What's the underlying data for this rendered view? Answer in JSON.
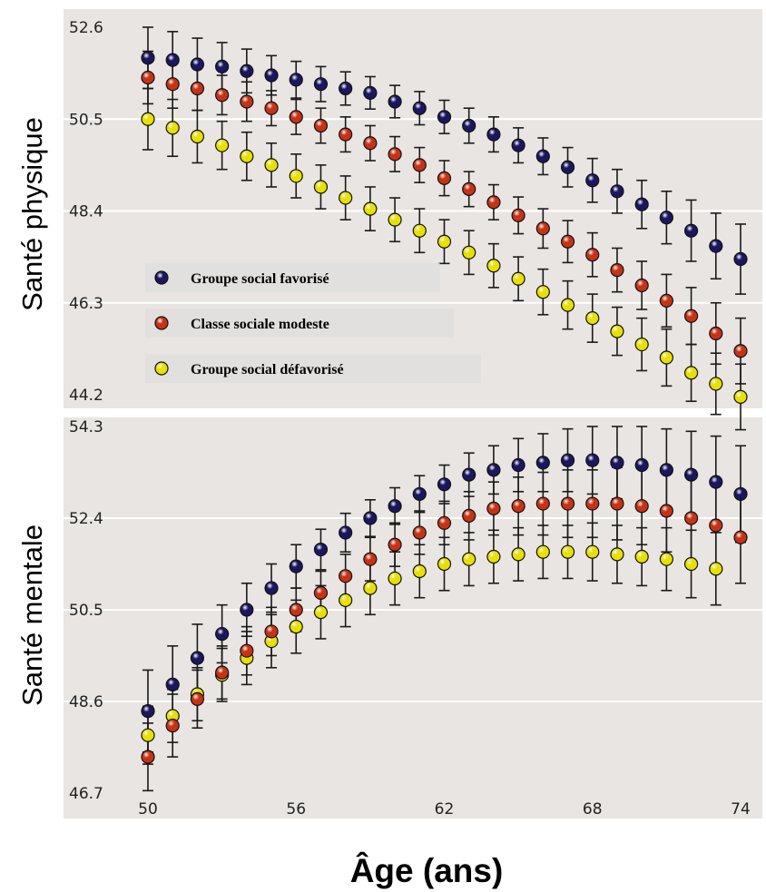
{
  "x_axis_label": "Âge (ans)",
  "legend": {
    "items": [
      {
        "label": "Groupe social favorisé",
        "color": "#1c1660"
      },
      {
        "label": "Classe sociale modeste",
        "color": "#c83214"
      },
      {
        "label": "Groupe social défavorisé",
        "color": "#e8e000"
      }
    ]
  },
  "chart_data": [
    {
      "type": "scatter",
      "ylabel": "Santé physique",
      "xlabel": "",
      "xlim": [
        49.5,
        74.5
      ],
      "ylim": [
        44.2,
        52.6
      ],
      "yticks": [
        44.2,
        46.3,
        48.4,
        50.5,
        52.6
      ],
      "xticks": [
        50,
        56,
        62,
        68,
        74
      ],
      "grid": true,
      "error_bars": true,
      "x": [
        50,
        51,
        52,
        53,
        54,
        55,
        56,
        57,
        58,
        59,
        60,
        61,
        62,
        63,
        64,
        65,
        66,
        67,
        68,
        69,
        70,
        71,
        72,
        73,
        74
      ],
      "series": [
        {
          "name": "Groupe social favorisé",
          "color": "#1c1660",
          "values": [
            51.9,
            51.85,
            51.75,
            51.7,
            51.6,
            51.5,
            51.4,
            51.3,
            51.2,
            51.1,
            50.9,
            50.75,
            50.55,
            50.35,
            50.15,
            49.9,
            49.65,
            49.4,
            49.1,
            48.85,
            48.55,
            48.25,
            47.95,
            47.6,
            47.3
          ],
          "error": [
            0.7,
            0.65,
            0.6,
            0.55,
            0.5,
            0.45,
            0.42,
            0.4,
            0.38,
            0.37,
            0.37,
            0.38,
            0.38,
            0.4,
            0.4,
            0.4,
            0.42,
            0.45,
            0.5,
            0.5,
            0.55,
            0.6,
            0.7,
            0.75,
            0.8
          ]
        },
        {
          "name": "Classe sociale modeste",
          "color": "#c83214",
          "values": [
            51.45,
            51.3,
            51.2,
            51.05,
            50.9,
            50.75,
            50.55,
            50.35,
            50.15,
            49.95,
            49.7,
            49.45,
            49.15,
            48.9,
            48.6,
            48.3,
            48.0,
            47.7,
            47.4,
            47.05,
            46.7,
            46.35,
            46.0,
            45.6,
            45.2
          ],
          "error": [
            0.6,
            0.55,
            0.5,
            0.45,
            0.45,
            0.4,
            0.4,
            0.4,
            0.4,
            0.4,
            0.4,
            0.4,
            0.4,
            0.4,
            0.4,
            0.42,
            0.45,
            0.48,
            0.5,
            0.5,
            0.55,
            0.6,
            0.65,
            0.7,
            0.75
          ]
        },
        {
          "name": "Groupe social défavorisé",
          "color": "#e8e000",
          "values": [
            50.5,
            50.3,
            50.1,
            49.9,
            49.65,
            49.45,
            49.2,
            48.95,
            48.7,
            48.45,
            48.2,
            47.95,
            47.7,
            47.45,
            47.15,
            46.85,
            46.55,
            46.25,
            45.95,
            45.65,
            45.35,
            45.05,
            44.7,
            44.45,
            44.15
          ]
        },
        {
          "name": "",
          "color": "#ffffff",
          "values": []
        }
      ],
      "yellow_error": [
        0.7,
        0.65,
        0.6,
        0.55,
        0.55,
        0.5,
        0.5,
        0.5,
        0.5,
        0.5,
        0.5,
        0.5,
        0.5,
        0.5,
        0.5,
        0.5,
        0.52,
        0.55,
        0.55,
        0.55,
        0.6,
        0.65,
        0.65,
        0.7,
        0.75
      ]
    },
    {
      "type": "scatter",
      "ylabel": "Santé mentale",
      "xlabel": "Âge (ans)",
      "xlim": [
        49.5,
        74.5
      ],
      "ylim": [
        46.7,
        54.3
      ],
      "yticks": [
        46.7,
        48.6,
        50.5,
        52.4,
        54.3
      ],
      "xticks": [
        50,
        56,
        62,
        68,
        74
      ],
      "grid": true,
      "error_bars": true,
      "x": [
        50,
        51,
        52,
        53,
        54,
        55,
        56,
        57,
        58,
        59,
        60,
        61,
        62,
        63,
        64,
        65,
        66,
        67,
        68,
        69,
        70,
        71,
        72,
        73,
        74
      ],
      "series": [
        {
          "name": "Groupe social favorisé",
          "color": "#1c1660",
          "values": [
            48.4,
            48.95,
            49.5,
            50.0,
            50.5,
            50.95,
            51.4,
            51.75,
            52.1,
            52.4,
            52.65,
            52.9,
            53.1,
            53.3,
            53.4,
            53.5,
            53.55,
            53.6,
            53.6,
            53.55,
            53.5,
            53.4,
            53.3,
            53.15,
            52.9
          ],
          "error": [
            0.85,
            0.8,
            0.7,
            0.6,
            0.55,
            0.5,
            0.45,
            0.42,
            0.4,
            0.38,
            0.38,
            0.38,
            0.4,
            0.45,
            0.5,
            0.55,
            0.6,
            0.65,
            0.7,
            0.75,
            0.8,
            0.85,
            0.9,
            0.95,
            1.0
          ]
        },
        {
          "name": "Classe sociale modeste",
          "color": "#c83214",
          "values": [
            47.45,
            48.1,
            48.65,
            49.2,
            49.65,
            50.05,
            50.5,
            50.85,
            51.2,
            51.55,
            51.85,
            52.1,
            52.3,
            52.45,
            52.6,
            52.65,
            52.7,
            52.7,
            52.7,
            52.7,
            52.65,
            52.55,
            52.4,
            52.25,
            52.0
          ],
          "error": [
            0.7,
            0.65,
            0.6,
            0.55,
            0.5,
            0.5,
            0.45,
            0.45,
            0.45,
            0.45,
            0.45,
            0.45,
            0.45,
            0.5,
            0.55,
            0.6,
            0.65,
            0.7,
            0.7,
            0.75,
            0.8,
            0.85,
            0.9,
            0.95,
            0.95
          ]
        },
        {
          "name": "Groupe social défavorisé",
          "color": "#e8e000",
          "values": [
            47.9,
            48.3,
            48.75,
            49.15,
            49.5,
            49.85,
            50.15,
            50.45,
            50.7,
            50.95,
            51.15,
            51.3,
            51.45,
            51.55,
            51.6,
            51.65,
            51.7,
            51.7,
            51.7,
            51.65,
            51.6,
            51.55,
            51.45,
            51.35,
            null
          ]
        }
      ],
      "yellow_error": [
        0.6,
        0.55,
        0.55,
        0.55,
        0.55,
        0.55,
        0.55,
        0.55,
        0.55,
        0.55,
        0.55,
        0.55,
        0.55,
        0.55,
        0.55,
        0.55,
        0.55,
        0.55,
        0.6,
        0.6,
        0.6,
        0.65,
        0.7,
        0.75,
        0
      ]
    }
  ]
}
